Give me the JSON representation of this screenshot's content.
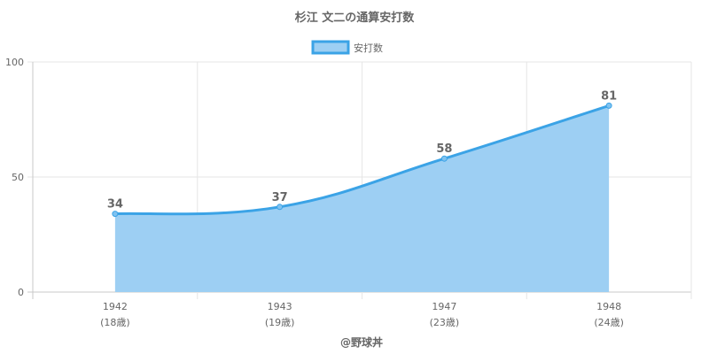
{
  "chart_data": {
    "type": "area",
    "title": "杉江 文二の通算安打数",
    "legend": {
      "label": "安打数",
      "position": "top"
    },
    "categories": [
      "1942",
      "1943",
      "1947",
      "1948"
    ],
    "sub_labels": [
      "(18歳)",
      "(19歳)",
      "(23歳)",
      "(24歳)"
    ],
    "series": [
      {
        "name": "安打数",
        "values": [
          34,
          37,
          58,
          81
        ]
      }
    ],
    "yticks": [
      "0",
      "50",
      "100"
    ],
    "ylim": [
      0,
      100
    ],
    "grid": true,
    "data_labels": [
      "34",
      "37",
      "58",
      "81"
    ],
    "colors": {
      "line": "#3ba3e6",
      "fill": "#9dcff3",
      "point_fill": "#7fc2f0",
      "grid": "#e6e6e6",
      "axis": "#c8c8c8"
    }
  },
  "footer": "@野球丼"
}
